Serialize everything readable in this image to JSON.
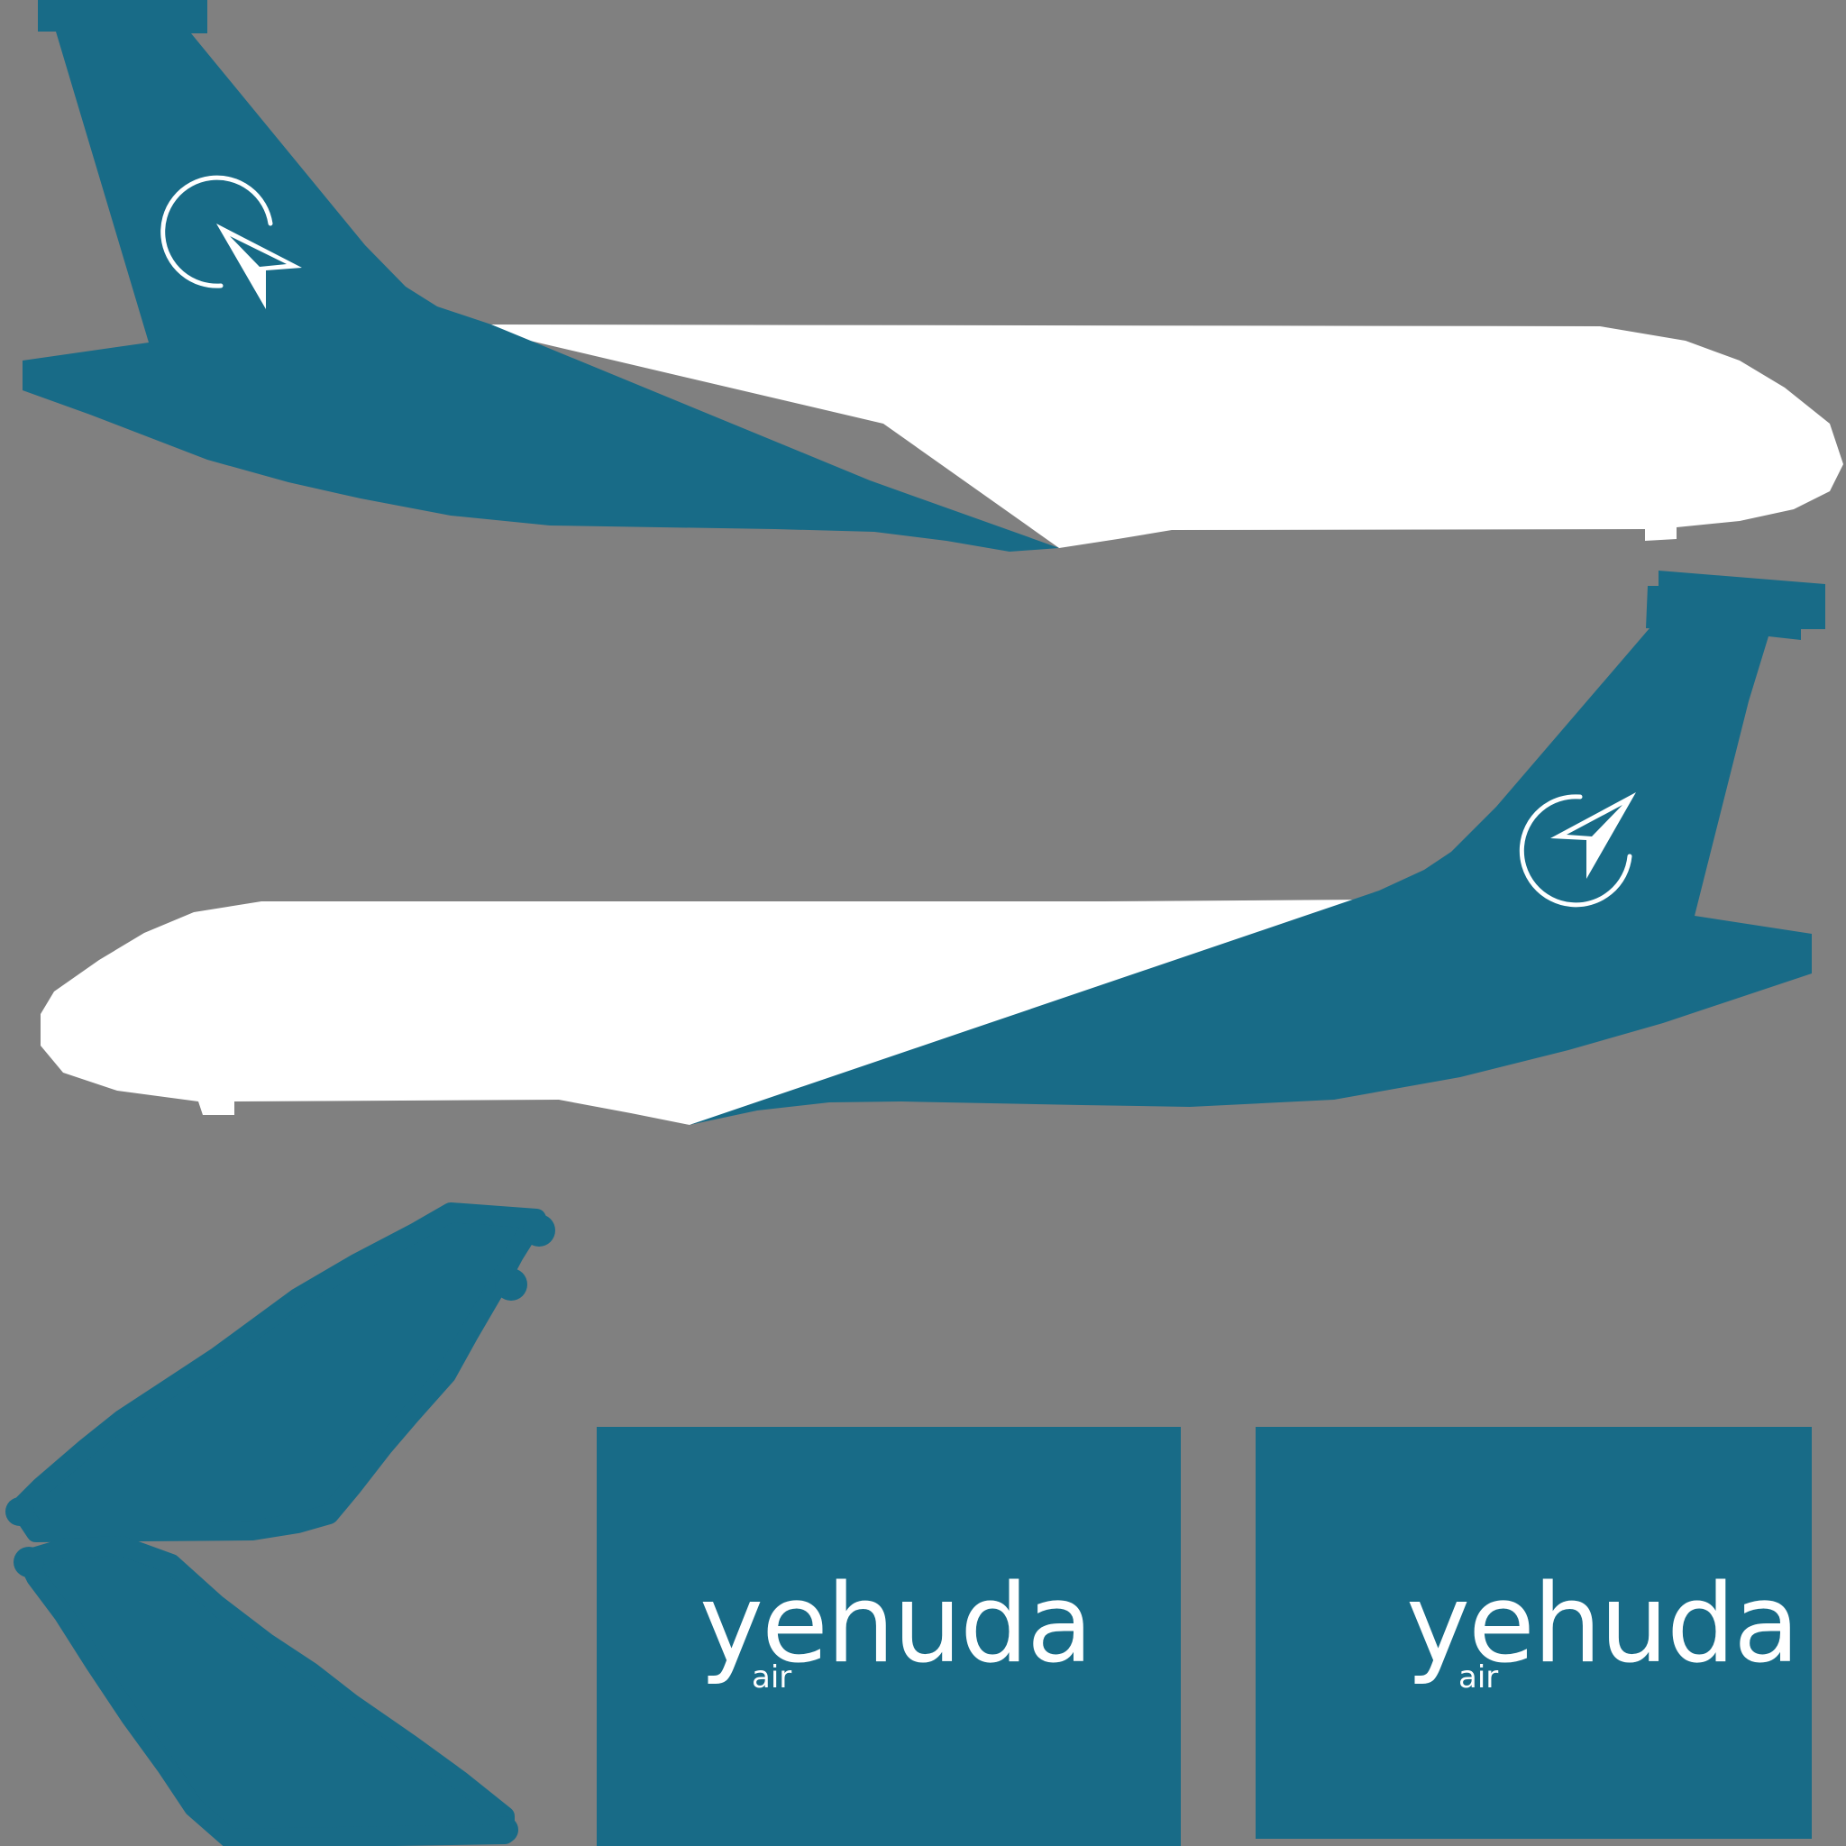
{
  "colors": {
    "background": "#808080",
    "brand_teal": "#186b87",
    "livery_white": "#ffffff"
  },
  "brand": {
    "name": "yehuda",
    "sub": "air"
  },
  "panels": [
    {
      "name": "yehuda",
      "sub": "air"
    },
    {
      "name": "yehuda",
      "sub": "air"
    }
  ],
  "icons": {
    "tail_emblem": "circular-arrow-paper-plane-icon"
  }
}
